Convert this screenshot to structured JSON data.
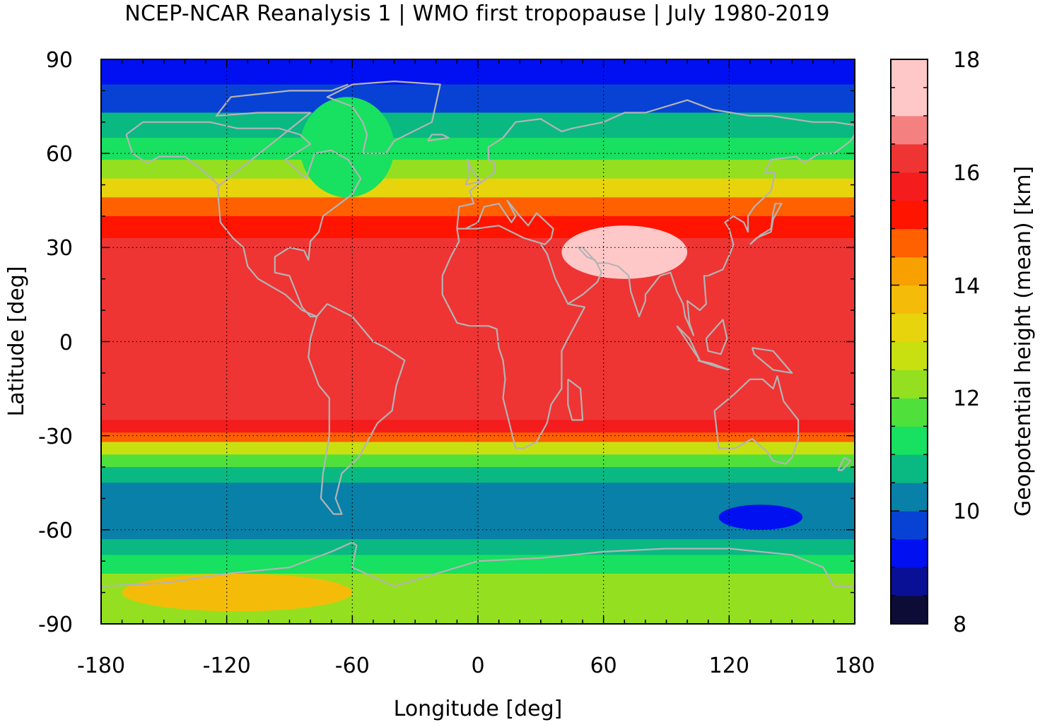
{
  "figure": {
    "title": "NCEP-NCAR Reanalysis 1 | WMO first tropopause | July 1980-2019"
  },
  "map": {
    "xlabel": "Longitude [deg]",
    "ylabel": "Latitude [deg]",
    "xlim": [
      -180,
      180
    ],
    "ylim": [
      -90,
      90
    ],
    "xticks": [
      "-180",
      "-120",
      "-60",
      "0",
      "60",
      "120",
      "180"
    ],
    "yticks": [
      "90",
      "60",
      "30",
      "0",
      "-30",
      "-60",
      "-90"
    ],
    "grid": "dotted, every 60 deg longitude and 30 deg latitude",
    "coastlines_color": "#b4b4b4",
    "field_bands": [
      {
        "lat": [
          82,
          90
        ],
        "height_km": 9.3
      },
      {
        "lat": [
          73,
          82
        ],
        "height_km": 9.8
      },
      {
        "lat": [
          65,
          73
        ],
        "height_km": 10.5
      },
      {
        "lat": [
          58,
          65
        ],
        "height_km": 11.3
      },
      {
        "lat": [
          52,
          58
        ],
        "height_km": 12.0
      },
      {
        "lat": [
          46,
          52
        ],
        "height_km": 13.2
      },
      {
        "lat": [
          40,
          46
        ],
        "height_km": 14.5
      },
      {
        "lat": [
          33,
          40
        ],
        "height_km": 15.4
      },
      {
        "lat": [
          -25,
          33
        ],
        "height_km": 16.3
      },
      {
        "lat": [
          -29,
          -25
        ],
        "height_km": 15.5
      },
      {
        "lat": [
          -32,
          -29
        ],
        "height_km": 14.5
      },
      {
        "lat": [
          -36,
          -32
        ],
        "height_km": 12.8
      },
      {
        "lat": [
          -40,
          -36
        ],
        "height_km": 11.5
      },
      {
        "lat": [
          -45,
          -40
        ],
        "height_km": 10.5
      },
      {
        "lat": [
          -63,
          -45
        ],
        "height_km": 10.0
      },
      {
        "lat": [
          -68,
          -63
        ],
        "height_km": 10.6
      },
      {
        "lat": [
          -74,
          -68
        ],
        "height_km": 11.4
      },
      {
        "lat": [
          -90,
          -74
        ],
        "height_km": 12.2
      }
    ],
    "features": [
      {
        "name": "tibetan-high",
        "lon": [
          40,
          100
        ],
        "lat": [
          20,
          37
        ],
        "height_km": 17.2
      },
      {
        "name": "south-indian-ocean-low",
        "lon": [
          115,
          155
        ],
        "lat": [
          -60,
          -52
        ],
        "height_km": 9.4
      },
      {
        "name": "south-pacific-polar-high",
        "lon": [
          -170,
          -60
        ],
        "lat": [
          -86,
          -74
        ],
        "height_km": 13.5
      },
      {
        "name": "north-atlantic-trough",
        "lon": [
          -85,
          -40
        ],
        "lat": [
          46,
          78
        ],
        "height_km": 11.0
      }
    ]
  },
  "colorbar": {
    "label": "Geopotential height (mean) [km]",
    "ticks": [
      "18",
      "16",
      "14",
      "12",
      "10",
      "8"
    ],
    "range": [
      8,
      18
    ],
    "levels": [
      8,
      8.5,
      9,
      9.5,
      10,
      10.5,
      11,
      11.5,
      12,
      12.5,
      13,
      13.5,
      14,
      14.5,
      15,
      15.5,
      16,
      16.5,
      17,
      17.5,
      18
    ],
    "colors": [
      "#0c0c36",
      "#0a1096",
      "#0010f0",
      "#0842d4",
      "#0880a8",
      "#0ab882",
      "#18e060",
      "#50e03c",
      "#94e020",
      "#c8e010",
      "#e8d40c",
      "#f4bc08",
      "#f8a000",
      "#ff6000",
      "#ff1400",
      "#f41c1c",
      "#ef3434",
      "#f48080",
      "#ffc8c8",
      "#ffc8c8"
    ]
  }
}
